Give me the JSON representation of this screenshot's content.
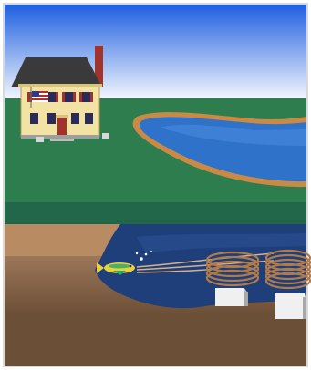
{
  "scene": {
    "description_visible_text": "",
    "colors": {
      "sky_top": "#1f5fe0",
      "sky_bottom": "#ffffff",
      "grass": "#2e7d4f",
      "grass_dark": "#23674a",
      "pond_water": "#2f72c9",
      "pond_shore": "#c98a45",
      "soil_light": "#b88b62",
      "soil_mid": "#8a6a52",
      "soil_dark": "#6b4f37",
      "underground_water": "#1e3f7a",
      "house_wall": "#f2e2a4",
      "roof": "#3a3a3a",
      "chimney": "#a0332b",
      "coil": "#b07a4a",
      "block": "#f0f0f0"
    },
    "icons": [
      "house-icon",
      "flag-icon",
      "pond-icon",
      "heat-pump-icon",
      "coil-icon",
      "fish-icon"
    ]
  }
}
